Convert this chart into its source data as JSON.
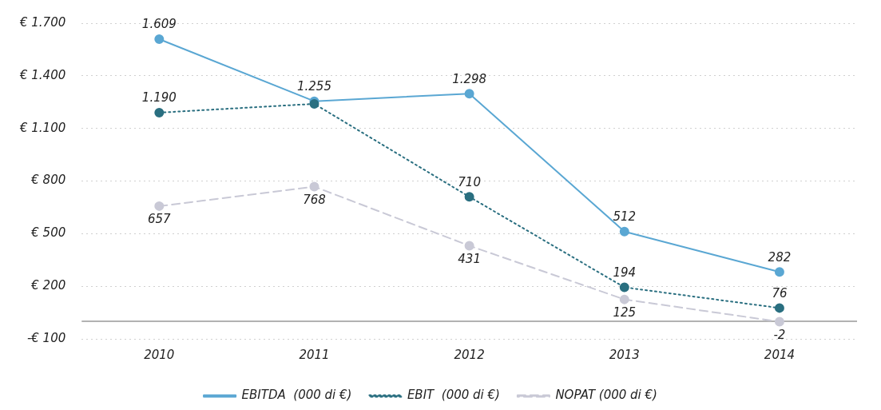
{
  "chart_data": {
    "type": "line",
    "categories": [
      "2010",
      "2011",
      "2012",
      "2013",
      "2014"
    ],
    "series": [
      {
        "name": "EBITDA  (000 di €)",
        "color": "#5aa7d3",
        "line_style": "solid",
        "values": [
          1609,
          1255,
          1298,
          512,
          282
        ],
        "value_labels": [
          "1.609",
          "1.255",
          "1.298",
          "512",
          "282"
        ]
      },
      {
        "name": "EBIT  (000 di €)",
        "color": "#2a6f80",
        "line_style": "dotted",
        "values": [
          1190,
          1240,
          710,
          194,
          76
        ],
        "value_labels": [
          "1.190",
          null,
          "710",
          "194",
          "76"
        ]
      },
      {
        "name": "NOPAT (000 di €)",
        "color": "#c9c9d6",
        "line_style": "dashed",
        "values": [
          657,
          768,
          431,
          125,
          -2
        ],
        "value_labels": [
          "657",
          "768",
          "431",
          "125",
          "-2"
        ]
      }
    ],
    "ylim": [
      -100,
      1700
    ],
    "yticks": [
      {
        "value": -100,
        "label": "-€ 100"
      },
      {
        "value": 200,
        "label": "€ 200"
      },
      {
        "value": 500,
        "label": "€ 500"
      },
      {
        "value": 800,
        "label": "€ 800"
      },
      {
        "value": 1100,
        "label": "€ 1.100"
      },
      {
        "value": 1400,
        "label": "€ 1.400"
      },
      {
        "value": 1700,
        "label": "€ 1.700"
      }
    ],
    "ref_lines": [
      {
        "axis": "y",
        "value": 0,
        "color": "#999999"
      }
    ],
    "grid": "y",
    "legend": "bottom",
    "marker": "circle"
  }
}
